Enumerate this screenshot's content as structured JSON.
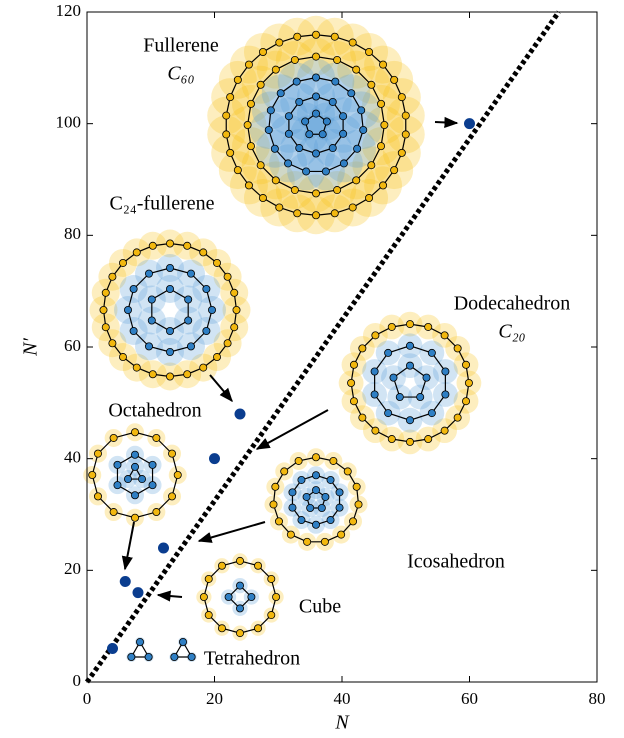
{
  "chart_data": {
    "type": "scatter",
    "x": [
      4,
      6,
      8,
      12,
      20,
      24,
      60
    ],
    "values": [
      6,
      18,
      16,
      24,
      40,
      48,
      100
    ],
    "color": "#0a3d8f",
    "reference_line": {
      "x": [
        0,
        74
      ],
      "y": [
        0,
        120
      ],
      "color": "#000000"
    },
    "xlabel": "N",
    "ylabel": "N′",
    "xlim": [
      0,
      80
    ],
    "ylim": [
      0,
      120
    ],
    "xticks": [
      0,
      20,
      40,
      60,
      80
    ],
    "yticks": [
      0,
      20,
      40,
      60,
      80,
      100,
      120
    ],
    "annotations": [
      "Fullerene",
      "C₆₀",
      "C₂₄-fullerene",
      "Dodecahedron",
      "C₂₀",
      "Octahedron",
      "Icosahedron",
      "Cube",
      "Tetrahedron"
    ]
  }
}
